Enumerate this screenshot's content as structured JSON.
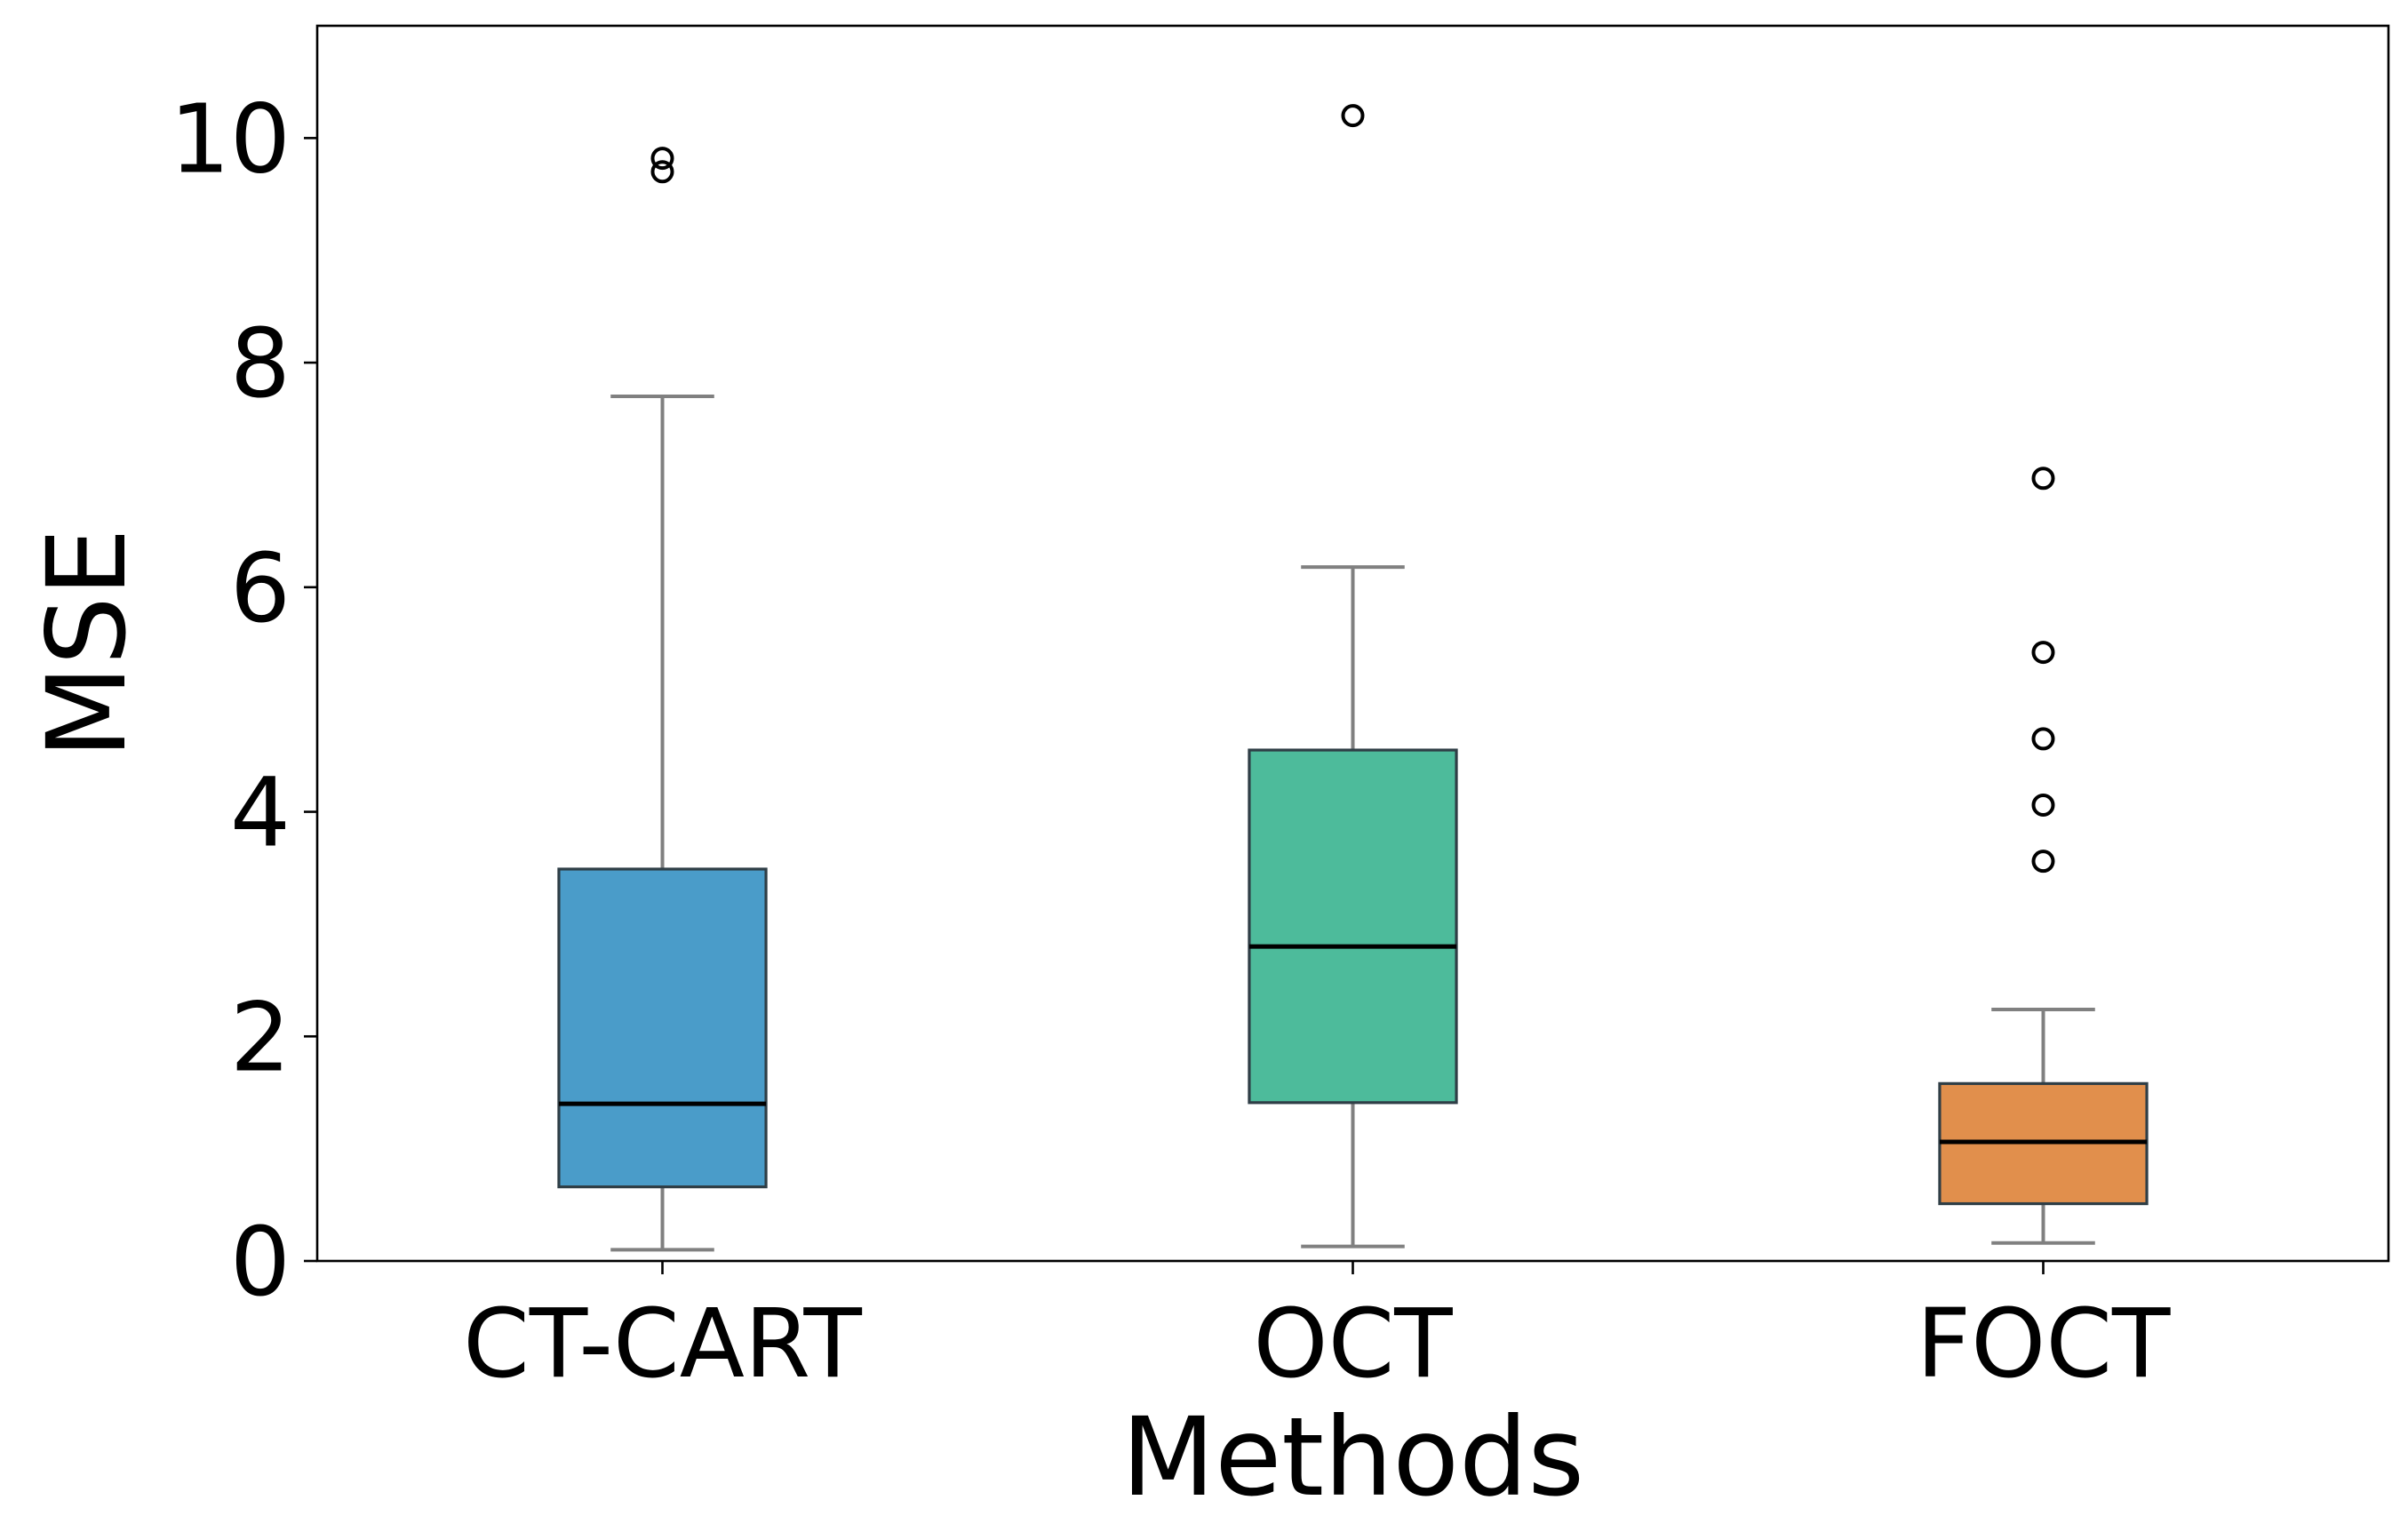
{
  "chart_data": {
    "type": "box",
    "xlabel": "Methods",
    "ylabel": "MSE",
    "ylim": [
      0,
      11
    ],
    "yticks": [
      0,
      2,
      4,
      6,
      8,
      10
    ],
    "ytick_labels": [
      "0",
      "2",
      "4",
      "6",
      "8",
      "10"
    ],
    "grid": false,
    "categories": [
      "CT-CART",
      "OCT",
      "FOCT"
    ],
    "series": [
      {
        "name": "CT-CART",
        "color": "#4a9cc9",
        "whisker_low": 0.1,
        "q1": 0.66,
        "median": 1.4,
        "q3": 3.49,
        "whisker_high": 7.7,
        "outliers": [
          9.7,
          9.82
        ]
      },
      {
        "name": "OCT",
        "color": "#4dbb9b",
        "whisker_low": 0.13,
        "q1": 1.41,
        "median": 2.8,
        "q3": 4.55,
        "whisker_high": 6.18,
        "outliers": [
          10.2
        ]
      },
      {
        "name": "FOCT",
        "color": "#e18f4c",
        "whisker_low": 0.16,
        "q1": 0.51,
        "median": 1.06,
        "q3": 1.58,
        "whisker_high": 2.24,
        "outliers": [
          3.56,
          4.06,
          4.65,
          5.42,
          6.97
        ]
      }
    ]
  }
}
